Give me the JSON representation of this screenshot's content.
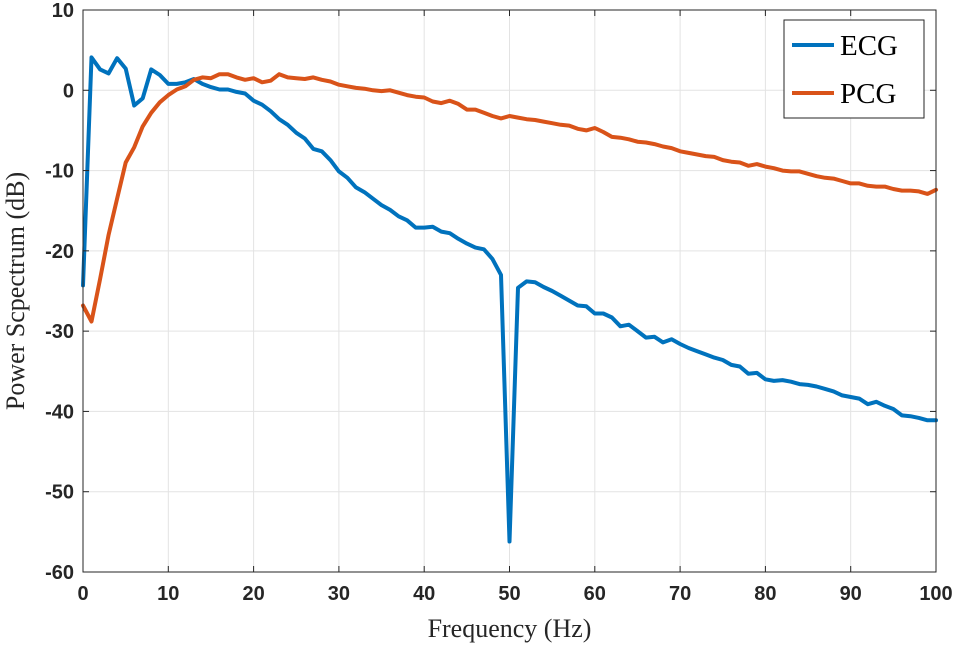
{
  "chart_data": {
    "type": "line",
    "xlabel": "Frequency (Hz)",
    "ylabel": "Power Scpectrum (dB)",
    "xlim": [
      0,
      100
    ],
    "ylim": [
      -60,
      10
    ],
    "xticks": [
      0,
      10,
      20,
      30,
      40,
      50,
      60,
      70,
      80,
      90,
      100
    ],
    "yticks": [
      10,
      0,
      -10,
      -20,
      -30,
      -40,
      -50,
      -60
    ],
    "grid": true,
    "legend_position": "top-right",
    "series": [
      {
        "name": "ECG",
        "color": "#0072BD",
        "x": [
          0,
          1,
          2,
          3,
          4,
          5,
          6,
          7,
          8,
          9,
          10,
          11,
          12,
          13,
          14,
          15,
          16,
          17,
          18,
          19,
          20,
          21,
          22,
          23,
          24,
          25,
          26,
          27,
          28,
          29,
          30,
          31,
          32,
          33,
          34,
          35,
          36,
          37,
          38,
          39,
          40,
          41,
          42,
          43,
          44,
          45,
          46,
          47,
          48,
          49,
          50,
          51,
          52,
          53,
          54,
          55,
          56,
          57,
          58,
          59,
          60,
          61,
          62,
          63,
          64,
          65,
          66,
          67,
          68,
          69,
          70,
          71,
          72,
          73,
          74,
          75,
          76,
          77,
          78,
          79,
          80,
          81,
          82,
          83,
          84,
          85,
          86,
          87,
          88,
          89,
          90,
          91,
          92,
          93,
          94,
          95,
          96,
          97,
          98,
          99,
          100
        ],
        "y": [
          -24.3,
          4.1,
          2.6,
          2.1,
          4.0,
          2.7,
          -1.9,
          -1.0,
          2.6,
          1.9,
          0.8,
          0.8,
          1.0,
          1.4,
          0.8,
          0.4,
          0.1,
          0.1,
          -0.2,
          -0.4,
          -1.3,
          -1.8,
          -2.6,
          -3.6,
          -4.3,
          -5.3,
          -6.0,
          -7.3,
          -7.6,
          -8.7,
          -10.1,
          -10.9,
          -12.1,
          -12.7,
          -13.5,
          -14.3,
          -14.9,
          -15.7,
          -16.2,
          -17.1,
          -17.1,
          -17.0,
          -17.6,
          -17.8,
          -18.5,
          -19.1,
          -19.6,
          -19.8,
          -21.0,
          -23.0,
          -56.2,
          -24.6,
          -23.8,
          -23.9,
          -24.5,
          -25.0,
          -25.6,
          -26.2,
          -26.8,
          -26.9,
          -27.8,
          -27.8,
          -28.3,
          -29.4,
          -29.2,
          -30.0,
          -30.8,
          -30.7,
          -31.4,
          -31.0,
          -31.6,
          -32.1,
          -32.5,
          -32.9,
          -33.3,
          -33.6,
          -34.2,
          -34.4,
          -35.3,
          -35.2,
          -36.0,
          -36.2,
          -36.1,
          -36.3,
          -36.6,
          -36.7,
          -36.9,
          -37.2,
          -37.5,
          -38.0,
          -38.2,
          -38.4,
          -39.1,
          -38.8,
          -39.3,
          -39.7,
          -40.5,
          -40.6,
          -40.8,
          -41.1,
          -41.1
        ]
      },
      {
        "name": "PCG",
        "color": "#D95319",
        "x": [
          0,
          1,
          2,
          3,
          4,
          5,
          6,
          7,
          8,
          9,
          10,
          11,
          12,
          13,
          14,
          15,
          16,
          17,
          18,
          19,
          20,
          21,
          22,
          23,
          24,
          25,
          26,
          27,
          28,
          29,
          30,
          31,
          32,
          33,
          34,
          35,
          36,
          37,
          38,
          39,
          40,
          41,
          42,
          43,
          44,
          45,
          46,
          47,
          48,
          49,
          50,
          51,
          52,
          53,
          54,
          55,
          56,
          57,
          58,
          59,
          60,
          61,
          62,
          63,
          64,
          65,
          66,
          67,
          68,
          69,
          70,
          71,
          72,
          73,
          74,
          75,
          76,
          77,
          78,
          79,
          80,
          81,
          82,
          83,
          84,
          85,
          86,
          87,
          88,
          89,
          90,
          91,
          92,
          93,
          94,
          95,
          96,
          97,
          98,
          99,
          100
        ],
        "y": [
          -26.8,
          -28.8,
          -23.5,
          -18.0,
          -13.5,
          -9.0,
          -7.1,
          -4.5,
          -2.8,
          -1.5,
          -0.6,
          0.1,
          0.5,
          1.3,
          1.6,
          1.5,
          2.0,
          2.0,
          1.6,
          1.3,
          1.5,
          1.0,
          1.2,
          2.0,
          1.6,
          1.5,
          1.4,
          1.6,
          1.3,
          1.1,
          0.7,
          0.5,
          0.3,
          0.2,
          0.0,
          -0.1,
          0.0,
          -0.3,
          -0.6,
          -0.8,
          -0.9,
          -1.4,
          -1.6,
          -1.3,
          -1.7,
          -2.4,
          -2.4,
          -2.8,
          -3.2,
          -3.5,
          -3.2,
          -3.4,
          -3.6,
          -3.7,
          -3.9,
          -4.1,
          -4.3,
          -4.4,
          -4.8,
          -5.0,
          -4.7,
          -5.2,
          -5.8,
          -5.9,
          -6.1,
          -6.4,
          -6.5,
          -6.7,
          -7.0,
          -7.2,
          -7.6,
          -7.8,
          -8.0,
          -8.2,
          -8.3,
          -8.7,
          -8.9,
          -9.0,
          -9.4,
          -9.2,
          -9.5,
          -9.7,
          -10.0,
          -10.1,
          -10.1,
          -10.4,
          -10.7,
          -10.9,
          -11.0,
          -11.3,
          -11.6,
          -11.6,
          -11.9,
          -12.0,
          -12.0,
          -12.3,
          -12.5,
          -12.5,
          -12.6,
          -12.9,
          -12.4
        ]
      }
    ]
  }
}
